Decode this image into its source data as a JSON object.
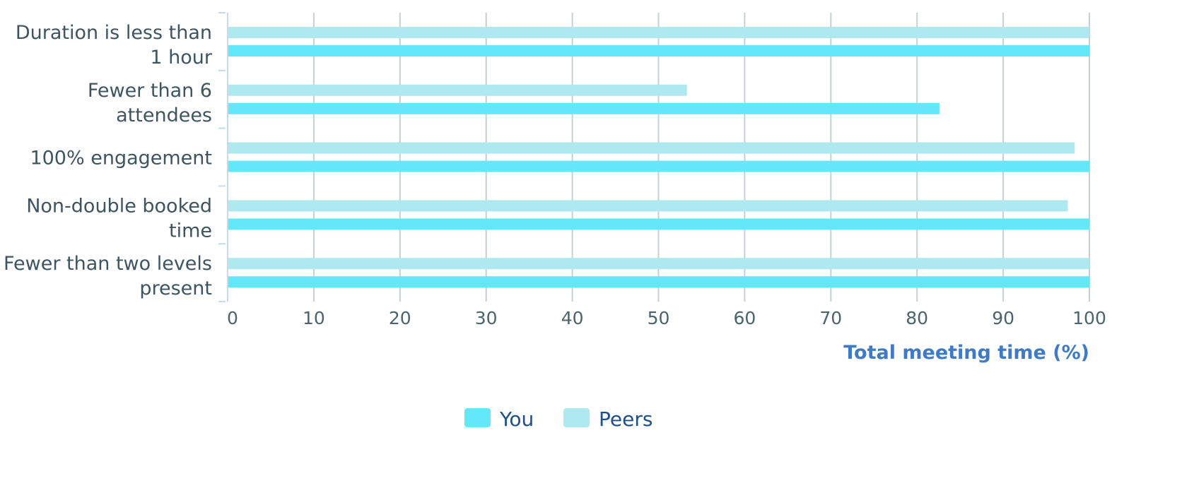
{
  "chart_data": {
    "type": "bar",
    "orientation": "horizontal",
    "categories": [
      [
        "Duration is less than",
        "1 hour"
      ],
      [
        "Fewer than 6",
        "attendees"
      ],
      [
        "100% engagement"
      ],
      [
        "Non-double booked",
        "time"
      ],
      [
        "Fewer than two levels",
        "present"
      ]
    ],
    "series": [
      {
        "name": "Peers",
        "color": "#aee9f0",
        "values": [
          100,
          53.3,
          98.3,
          97.5,
          100
        ]
      },
      {
        "name": "You",
        "color": "#63e8fa",
        "values": [
          100,
          82.6,
          100,
          100,
          100
        ]
      }
    ],
    "xlabel": "Total meeting time (%)",
    "xlim": [
      0,
      100
    ],
    "xticks": [
      0,
      10,
      20,
      30,
      40,
      50,
      60,
      70,
      80,
      90,
      100
    ],
    "grid": true,
    "legend": {
      "placement": "bottom-center",
      "order": [
        "You",
        "Peers"
      ]
    },
    "colors": {
      "grid": "#c6d0d3",
      "axis": "#c3dceb",
      "tick_text": "#49646d",
      "category_text": "#3d5560",
      "axis_title": "#3f7bc5",
      "legend_text": "#1f4f8b"
    }
  }
}
